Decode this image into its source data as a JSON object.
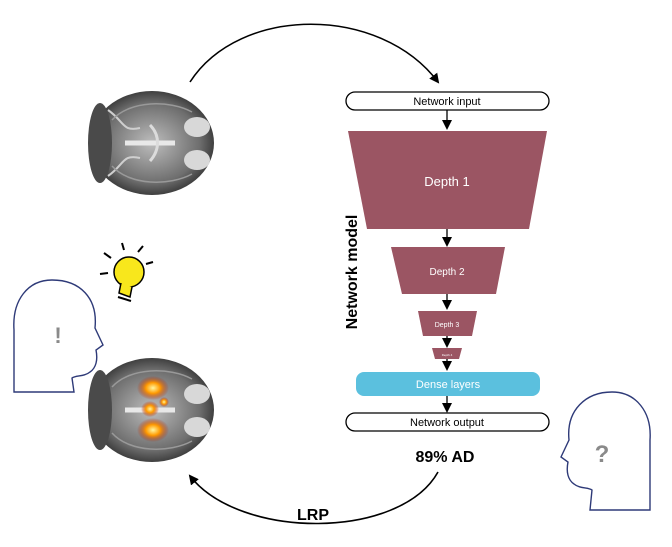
{
  "pipeline": {
    "input_label": "Network input",
    "layers": [
      "Depth 1",
      "Depth 2",
      "Depth 3",
      "Depth 4"
    ],
    "dense_label": "Dense layers",
    "output_label": "Network output",
    "model_label": "Network model",
    "prediction": "89% AD"
  },
  "explanation": {
    "method_label": "LRP",
    "left_head_mark": "!",
    "right_head_mark": "?"
  },
  "colors": {
    "layer_fill": "#9b5563",
    "dense_fill": "#5bc0de",
    "bulb_fill": "#f8e71c",
    "head_stroke": "#2e3a78",
    "mark_color": "#8a8a8a"
  }
}
